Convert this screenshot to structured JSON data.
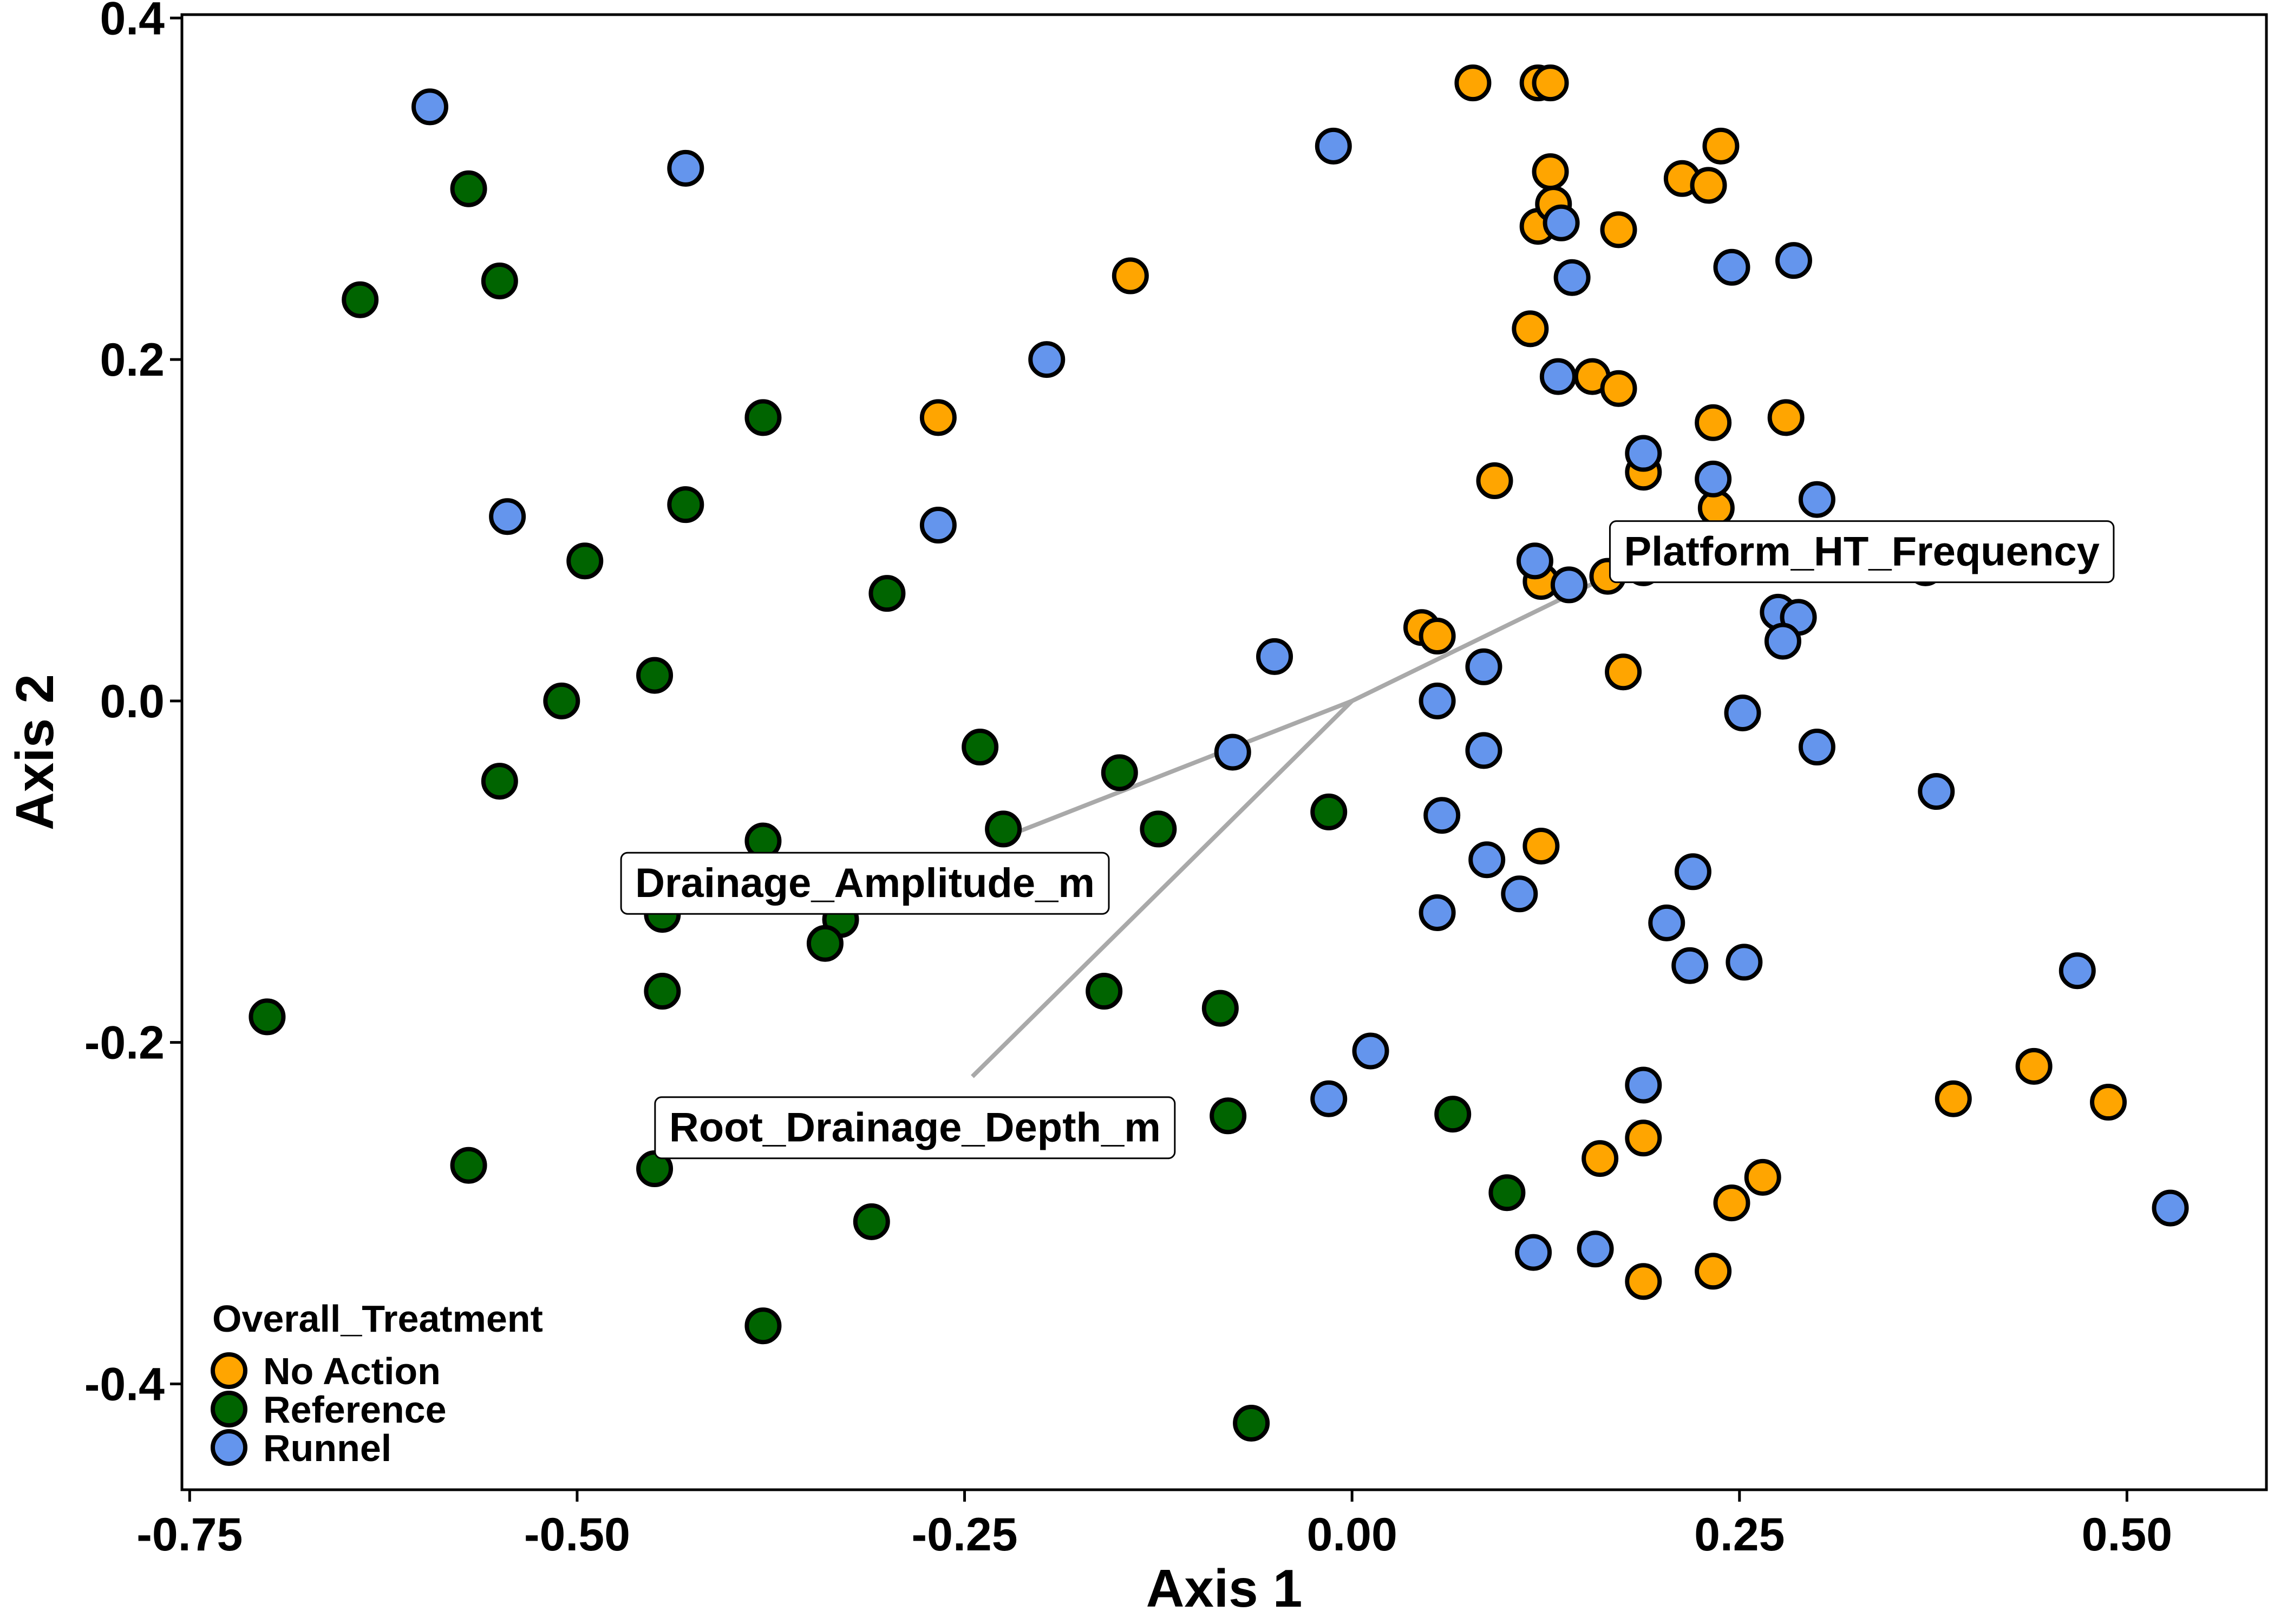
{
  "chart_data": {
    "type": "scatter",
    "title": "",
    "xlabel": "Axis 1",
    "ylabel": "Axis 2",
    "xlim": [
      -0.755,
      0.59
    ],
    "ylim": [
      -0.462,
      0.402
    ],
    "x_ticks": [
      -0.75,
      -0.5,
      -0.25,
      0.0,
      0.25,
      0.5
    ],
    "x_tick_labels": [
      "-0.75",
      "-0.50",
      "-0.25",
      "0.00",
      "0.25",
      "0.50"
    ],
    "y_ticks": [
      -0.4,
      -0.2,
      0.0,
      0.2,
      0.4
    ],
    "y_tick_labels": [
      "-0.4",
      "-0.2",
      "0.0",
      "0.2",
      "0.4"
    ],
    "grid": false,
    "legend": {
      "title": "Overall_Treatment",
      "placement": "bottom-left",
      "entries": [
        "No Action",
        "Reference",
        "Runnel"
      ]
    },
    "series": [
      {
        "name": "Reference",
        "color": "#006400",
        "points": [
          [
            -0.57,
            0.3
          ],
          [
            -0.64,
            0.235
          ],
          [
            -0.55,
            0.246
          ],
          [
            -0.38,
            0.166
          ],
          [
            -0.43,
            0.115
          ],
          [
            -0.495,
            0.082
          ],
          [
            -0.3,
            0.063
          ],
          [
            -0.45,
            0.015
          ],
          [
            -0.51,
            0.0
          ],
          [
            -0.55,
            -0.047
          ],
          [
            -0.24,
            -0.027
          ],
          [
            -0.15,
            -0.042
          ],
          [
            -0.38,
            -0.082
          ],
          [
            -0.225,
            -0.075
          ],
          [
            -0.125,
            -0.075
          ],
          [
            -0.37,
            -0.11
          ],
          [
            -0.225,
            -0.112
          ],
          [
            -0.445,
            -0.125
          ],
          [
            -0.33,
            -0.128
          ],
          [
            -0.34,
            -0.142
          ],
          [
            -0.445,
            -0.17
          ],
          [
            -0.16,
            -0.17
          ],
          [
            -0.085,
            -0.18
          ],
          [
            -0.7,
            -0.185
          ],
          [
            -0.08,
            -0.243
          ],
          [
            -0.195,
            -0.252
          ],
          [
            -0.57,
            -0.272
          ],
          [
            -0.45,
            -0.274
          ],
          [
            -0.31,
            -0.305
          ],
          [
            -0.38,
            -0.366
          ],
          [
            -0.065,
            -0.423
          ],
          [
            -0.015,
            -0.065
          ],
          [
            0.065,
            -0.242
          ],
          [
            0.1,
            -0.288
          ]
        ]
      },
      {
        "name": "No Action",
        "color": "#FFA500",
        "points": [
          [
            0.078,
            0.362
          ],
          [
            0.12,
            0.362
          ],
          [
            0.128,
            0.362
          ],
          [
            0.128,
            0.31
          ],
          [
            0.238,
            0.325
          ],
          [
            0.213,
            0.306
          ],
          [
            0.23,
            0.302
          ],
          [
            0.12,
            0.278
          ],
          [
            0.13,
            0.291
          ],
          [
            0.172,
            0.276
          ],
          [
            -0.143,
            0.249
          ],
          [
            0.115,
            0.218
          ],
          [
            0.155,
            0.19
          ],
          [
            0.172,
            0.183
          ],
          [
            -0.267,
            0.166
          ],
          [
            0.233,
            0.163
          ],
          [
            0.28,
            0.166
          ],
          [
            0.188,
            0.134
          ],
          [
            0.092,
            0.129
          ],
          [
            0.235,
            0.113
          ],
          [
            0.165,
            0.073
          ],
          [
            0.122,
            0.07
          ],
          [
            0.045,
            0.043
          ],
          [
            0.055,
            0.038
          ],
          [
            0.175,
            0.017
          ],
          [
            0.122,
            -0.085
          ],
          [
            0.388,
            -0.233
          ],
          [
            0.44,
            -0.214
          ],
          [
            0.488,
            -0.235
          ],
          [
            0.16,
            -0.268
          ],
          [
            0.188,
            -0.256
          ],
          [
            0.245,
            -0.294
          ],
          [
            0.265,
            -0.279
          ],
          [
            0.188,
            -0.34
          ],
          [
            0.233,
            -0.334
          ]
        ]
      },
      {
        "name": "Runnel",
        "color": "#6495ED",
        "points": [
          [
            -0.595,
            0.348
          ],
          [
            -0.43,
            0.312
          ],
          [
            -0.012,
            0.325
          ],
          [
            -0.197,
            0.2
          ],
          [
            -0.267,
            0.103
          ],
          [
            -0.545,
            0.108
          ],
          [
            0.135,
            0.28
          ],
          [
            0.142,
            0.248
          ],
          [
            0.245,
            0.254
          ],
          [
            0.285,
            0.258
          ],
          [
            0.133,
            0.19
          ],
          [
            0.188,
            0.145
          ],
          [
            0.233,
            0.13
          ],
          [
            0.3,
            0.118
          ],
          [
            0.118,
            0.082
          ],
          [
            0.14,
            0.068
          ],
          [
            0.188,
            0.078
          ],
          [
            0.233,
            0.088
          ],
          [
            0.37,
            0.078
          ],
          [
            0.275,
            0.052
          ],
          [
            0.288,
            0.049
          ],
          [
            0.278,
            0.035
          ],
          [
            -0.05,
            0.026
          ],
          [
            0.085,
            0.02
          ],
          [
            0.055,
            0.0
          ],
          [
            0.252,
            -0.007
          ],
          [
            0.3,
            -0.027
          ],
          [
            -0.077,
            -0.03
          ],
          [
            0.085,
            -0.029
          ],
          [
            0.058,
            -0.067
          ],
          [
            0.377,
            -0.053
          ],
          [
            0.087,
            -0.093
          ],
          [
            0.22,
            -0.1
          ],
          [
            0.108,
            -0.113
          ],
          [
            0.055,
            -0.124
          ],
          [
            0.203,
            -0.13
          ],
          [
            0.218,
            -0.155
          ],
          [
            0.253,
            -0.153
          ],
          [
            0.468,
            -0.158
          ],
          [
            0.012,
            -0.205
          ],
          [
            -0.015,
            -0.233
          ],
          [
            0.188,
            -0.225
          ],
          [
            0.117,
            -0.323
          ],
          [
            0.157,
            -0.321
          ],
          [
            0.528,
            -0.297
          ]
        ]
      }
    ],
    "vectors": [
      {
        "label": "Platform_HT_Frequency",
        "x": 0.165,
        "y": 0.073
      },
      {
        "label": "Drainage_Amplitude_m",
        "x": -0.225,
        "y": -0.08
      },
      {
        "label": "Root_Drainage_Depth_m",
        "x": -0.245,
        "y": -0.22
      }
    ]
  }
}
